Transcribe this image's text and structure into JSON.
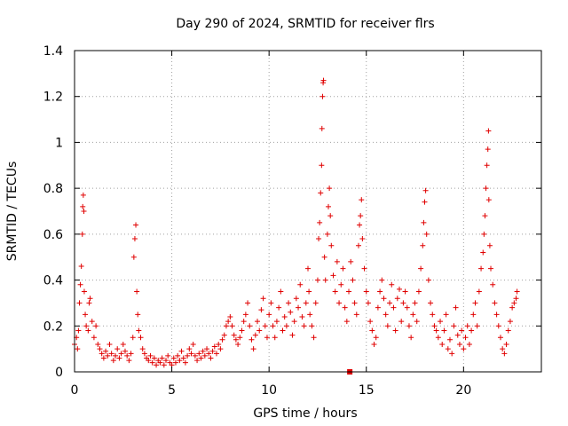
{
  "chart_data": {
    "type": "scatter",
    "title": "Day 290 of 2024, SRMTID for receiver flrs",
    "xlabel": "GPS time / hours",
    "ylabel": "SRMTID / TECUs",
    "xlim": [
      0,
      24
    ],
    "ylim": [
      0,
      1.4
    ],
    "xticks": [
      "0",
      "5",
      "10",
      "15",
      "20"
    ],
    "xtick_values": [
      0,
      5,
      10,
      15,
      20
    ],
    "yticks": [
      "0",
      "0.2",
      "0.4",
      "0.6",
      "0.8",
      "1",
      "1.2",
      "1.4"
    ],
    "ytick_values": [
      0,
      0.2,
      0.4,
      0.6,
      0.8,
      1.0,
      1.2,
      1.4
    ],
    "grid": true,
    "marker": "+",
    "marker_color": "#e00000",
    "series": [
      {
        "name": "SRMTID",
        "points": [
          [
            0.0,
            0.12
          ],
          [
            0.1,
            0.15
          ],
          [
            0.15,
            0.1
          ],
          [
            0.2,
            0.18
          ],
          [
            0.25,
            0.3
          ],
          [
            0.3,
            0.38
          ],
          [
            0.35,
            0.46
          ],
          [
            0.4,
            0.6
          ],
          [
            0.42,
            0.72
          ],
          [
            0.45,
            0.77
          ],
          [
            0.48,
            0.7
          ],
          [
            0.5,
            0.35
          ],
          [
            0.55,
            0.25
          ],
          [
            0.6,
            0.2
          ],
          [
            0.7,
            0.18
          ],
          [
            0.75,
            0.3
          ],
          [
            0.8,
            0.32
          ],
          [
            0.9,
            0.22
          ],
          [
            1.0,
            0.15
          ],
          [
            1.1,
            0.2
          ],
          [
            1.2,
            0.12
          ],
          [
            1.3,
            0.1
          ],
          [
            1.4,
            0.08
          ],
          [
            1.5,
            0.06
          ],
          [
            1.6,
            0.09
          ],
          [
            1.7,
            0.07
          ],
          [
            1.8,
            0.12
          ],
          [
            1.9,
            0.08
          ],
          [
            2.0,
            0.05
          ],
          [
            2.1,
            0.07
          ],
          [
            2.2,
            0.1
          ],
          [
            2.3,
            0.06
          ],
          [
            2.4,
            0.08
          ],
          [
            2.5,
            0.12
          ],
          [
            2.6,
            0.09
          ],
          [
            2.7,
            0.07
          ],
          [
            2.8,
            0.05
          ],
          [
            2.9,
            0.08
          ],
          [
            3.0,
            0.15
          ],
          [
            3.05,
            0.5
          ],
          [
            3.1,
            0.58
          ],
          [
            3.15,
            0.64
          ],
          [
            3.2,
            0.35
          ],
          [
            3.25,
            0.25
          ],
          [
            3.3,
            0.18
          ],
          [
            3.4,
            0.15
          ],
          [
            3.5,
            0.1
          ],
          [
            3.6,
            0.08
          ],
          [
            3.7,
            0.06
          ],
          [
            3.8,
            0.05
          ],
          [
            3.9,
            0.07
          ],
          [
            4.0,
            0.04
          ],
          [
            4.1,
            0.06
          ],
          [
            4.2,
            0.03
          ],
          [
            4.3,
            0.05
          ],
          [
            4.4,
            0.04
          ],
          [
            4.5,
            0.06
          ],
          [
            4.6,
            0.03
          ],
          [
            4.7,
            0.05
          ],
          [
            4.8,
            0.07
          ],
          [
            4.9,
            0.04
          ],
          [
            5.0,
            0.03
          ],
          [
            5.1,
            0.06
          ],
          [
            5.2,
            0.04
          ],
          [
            5.3,
            0.07
          ],
          [
            5.4,
            0.05
          ],
          [
            5.5,
            0.09
          ],
          [
            5.6,
            0.06
          ],
          [
            5.7,
            0.04
          ],
          [
            5.8,
            0.07
          ],
          [
            5.9,
            0.1
          ],
          [
            6.0,
            0.08
          ],
          [
            6.1,
            0.12
          ],
          [
            6.2,
            0.07
          ],
          [
            6.3,
            0.05
          ],
          [
            6.4,
            0.08
          ],
          [
            6.5,
            0.06
          ],
          [
            6.6,
            0.09
          ],
          [
            6.7,
            0.07
          ],
          [
            6.8,
            0.1
          ],
          [
            6.9,
            0.08
          ],
          [
            7.0,
            0.06
          ],
          [
            7.1,
            0.09
          ],
          [
            7.2,
            0.11
          ],
          [
            7.3,
            0.08
          ],
          [
            7.4,
            0.12
          ],
          [
            7.5,
            0.1
          ],
          [
            7.6,
            0.14
          ],
          [
            7.7,
            0.16
          ],
          [
            7.8,
            0.2
          ],
          [
            7.9,
            0.22
          ],
          [
            8.0,
            0.24
          ],
          [
            8.1,
            0.2
          ],
          [
            8.2,
            0.16
          ],
          [
            8.3,
            0.14
          ],
          [
            8.4,
            0.12
          ],
          [
            8.5,
            0.15
          ],
          [
            8.6,
            0.18
          ],
          [
            8.7,
            0.22
          ],
          [
            8.8,
            0.25
          ],
          [
            8.9,
            0.3
          ],
          [
            9.0,
            0.2
          ],
          [
            9.1,
            0.14
          ],
          [
            9.2,
            0.1
          ],
          [
            9.3,
            0.16
          ],
          [
            9.4,
            0.22
          ],
          [
            9.5,
            0.18
          ],
          [
            9.6,
            0.27
          ],
          [
            9.7,
            0.32
          ],
          [
            9.8,
            0.2
          ],
          [
            9.9,
            0.15
          ],
          [
            10.0,
            0.25
          ],
          [
            10.1,
            0.3
          ],
          [
            10.2,
            0.2
          ],
          [
            10.3,
            0.15
          ],
          [
            10.4,
            0.22
          ],
          [
            10.5,
            0.28
          ],
          [
            10.6,
            0.35
          ],
          [
            10.7,
            0.18
          ],
          [
            10.8,
            0.24
          ],
          [
            10.9,
            0.2
          ],
          [
            11.0,
            0.3
          ],
          [
            11.1,
            0.26
          ],
          [
            11.2,
            0.16
          ],
          [
            11.3,
            0.22
          ],
          [
            11.4,
            0.32
          ],
          [
            11.5,
            0.28
          ],
          [
            11.6,
            0.38
          ],
          [
            11.7,
            0.24
          ],
          [
            11.8,
            0.2
          ],
          [
            11.9,
            0.3
          ],
          [
            12.0,
            0.45
          ],
          [
            12.05,
            0.35
          ],
          [
            12.1,
            0.25
          ],
          [
            12.2,
            0.2
          ],
          [
            12.3,
            0.15
          ],
          [
            12.4,
            0.3
          ],
          [
            12.5,
            0.4
          ],
          [
            12.55,
            0.58
          ],
          [
            12.6,
            0.65
          ],
          [
            12.65,
            0.78
          ],
          [
            12.7,
            0.9
          ],
          [
            12.72,
            1.06
          ],
          [
            12.75,
            1.2
          ],
          [
            12.78,
            1.26
          ],
          [
            12.8,
            1.27
          ],
          [
            12.85,
            0.5
          ],
          [
            12.9,
            0.4
          ],
          [
            13.0,
            0.6
          ],
          [
            13.05,
            0.72
          ],
          [
            13.1,
            0.8
          ],
          [
            13.15,
            0.68
          ],
          [
            13.2,
            0.55
          ],
          [
            13.3,
            0.42
          ],
          [
            13.4,
            0.35
          ],
          [
            13.5,
            0.48
          ],
          [
            13.6,
            0.3
          ],
          [
            13.7,
            0.38
          ],
          [
            13.8,
            0.45
          ],
          [
            13.9,
            0.28
          ],
          [
            14.0,
            0.22
          ],
          [
            14.1,
            0.35
          ],
          [
            14.2,
            0.48
          ],
          [
            14.3,
            0.4
          ],
          [
            14.4,
            0.3
          ],
          [
            14.5,
            0.25
          ],
          [
            14.6,
            0.55
          ],
          [
            14.65,
            0.64
          ],
          [
            14.7,
            0.68
          ],
          [
            14.75,
            0.75
          ],
          [
            14.8,
            0.58
          ],
          [
            14.9,
            0.45
          ],
          [
            15.0,
            0.35
          ],
          [
            15.1,
            0.3
          ],
          [
            15.2,
            0.22
          ],
          [
            15.3,
            0.18
          ],
          [
            15.4,
            0.12
          ],
          [
            15.5,
            0.15
          ],
          [
            15.6,
            0.28
          ],
          [
            15.7,
            0.35
          ],
          [
            15.8,
            0.4
          ],
          [
            15.9,
            0.32
          ],
          [
            16.0,
            0.25
          ],
          [
            16.1,
            0.2
          ],
          [
            16.2,
            0.3
          ],
          [
            16.3,
            0.38
          ],
          [
            16.4,
            0.28
          ],
          [
            16.5,
            0.18
          ],
          [
            16.6,
            0.32
          ],
          [
            16.7,
            0.36
          ],
          [
            16.8,
            0.22
          ],
          [
            16.9,
            0.3
          ],
          [
            17.0,
            0.35
          ],
          [
            17.1,
            0.28
          ],
          [
            17.2,
            0.2
          ],
          [
            17.3,
            0.15
          ],
          [
            17.4,
            0.25
          ],
          [
            17.5,
            0.3
          ],
          [
            17.6,
            0.22
          ],
          [
            17.7,
            0.35
          ],
          [
            17.8,
            0.45
          ],
          [
            17.9,
            0.55
          ],
          [
            17.95,
            0.65
          ],
          [
            18.0,
            0.74
          ],
          [
            18.05,
            0.79
          ],
          [
            18.1,
            0.6
          ],
          [
            18.2,
            0.4
          ],
          [
            18.3,
            0.3
          ],
          [
            18.4,
            0.25
          ],
          [
            18.5,
            0.2
          ],
          [
            18.6,
            0.18
          ],
          [
            18.7,
            0.15
          ],
          [
            18.8,
            0.22
          ],
          [
            18.9,
            0.12
          ],
          [
            19.0,
            0.18
          ],
          [
            19.1,
            0.25
          ],
          [
            19.2,
            0.1
          ],
          [
            19.3,
            0.14
          ],
          [
            19.4,
            0.08
          ],
          [
            19.5,
            0.2
          ],
          [
            19.6,
            0.28
          ],
          [
            19.7,
            0.16
          ],
          [
            19.8,
            0.12
          ],
          [
            19.9,
            0.18
          ],
          [
            20.0,
            0.1
          ],
          [
            20.1,
            0.15
          ],
          [
            20.2,
            0.2
          ],
          [
            20.3,
            0.12
          ],
          [
            20.4,
            0.18
          ],
          [
            20.5,
            0.25
          ],
          [
            20.6,
            0.3
          ],
          [
            20.7,
            0.2
          ],
          [
            20.8,
            0.35
          ],
          [
            20.9,
            0.45
          ],
          [
            21.0,
            0.52
          ],
          [
            21.05,
            0.6
          ],
          [
            21.1,
            0.68
          ],
          [
            21.15,
            0.8
          ],
          [
            21.2,
            0.9
          ],
          [
            21.25,
            0.97
          ],
          [
            21.28,
            1.05
          ],
          [
            21.3,
            0.75
          ],
          [
            21.35,
            0.55
          ],
          [
            21.4,
            0.45
          ],
          [
            21.5,
            0.38
          ],
          [
            21.6,
            0.3
          ],
          [
            21.7,
            0.25
          ],
          [
            21.8,
            0.2
          ],
          [
            21.9,
            0.15
          ],
          [
            22.0,
            0.1
          ],
          [
            22.1,
            0.08
          ],
          [
            22.2,
            0.12
          ],
          [
            22.3,
            0.18
          ],
          [
            22.4,
            0.22
          ],
          [
            22.5,
            0.28
          ],
          [
            22.6,
            0.3
          ],
          [
            22.7,
            0.32
          ],
          [
            22.75,
            0.35
          ]
        ]
      }
    ],
    "annotations": [
      {
        "type": "marker",
        "shape": "square",
        "x": 14.15,
        "y": 0.0,
        "color": "#e00000"
      }
    ]
  }
}
